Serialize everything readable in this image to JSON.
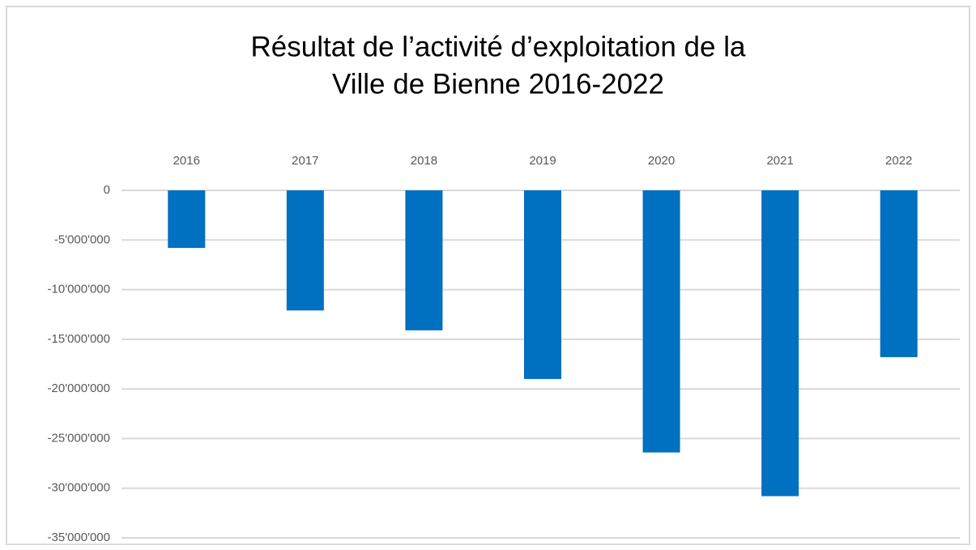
{
  "chart_data": {
    "type": "bar",
    "title": [
      "Résultat de l’activité d’exploitation de la",
      "Ville de Bienne 2016-2022"
    ],
    "categories": [
      "2016",
      "2017",
      "2018",
      "2019",
      "2020",
      "2021",
      "2022"
    ],
    "values": [
      -5800000,
      -12100000,
      -14100000,
      -19000000,
      -26400000,
      -30800000,
      -16800000
    ],
    "color": "#0070c0",
    "ylim": [
      -35000000,
      0
    ],
    "yticks": [
      0,
      {
        "value": -5000000,
        "label": "-5'000'000"
      },
      {
        "value": -10000000,
        "label": "-10'000'000"
      },
      {
        "value": -15000000,
        "label": "-15'000'000"
      },
      {
        "value": -20000000,
        "label": "-20'000'000"
      },
      {
        "value": -25000000,
        "label": "-25'000'000"
      },
      {
        "value": -30000000,
        "label": "-30'000'000"
      },
      {
        "value": -35000000,
        "label": "-35'000'000"
      }
    ],
    "grid": true
  }
}
